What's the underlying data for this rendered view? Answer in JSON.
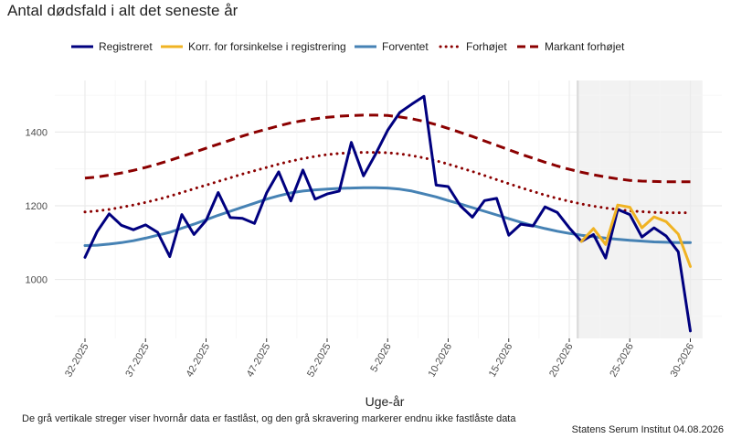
{
  "page": {
    "caption": "De grå vertikale streger viser hvornår data er fastlåst, og den grå skravering markerer endnu ikke fastlåste data",
    "source": "Statens Serum Institut  04.08.2026"
  },
  "chart_data": {
    "type": "line",
    "title": "Antal dødsfald i alt det seneste år",
    "xlabel": "Uge-år",
    "ylabel": "",
    "ylim": [
      840,
      1540
    ],
    "yticks": [
      1000,
      1200,
      1400
    ],
    "x_ticks": [
      {
        "index": 0,
        "label": "32-2025"
      },
      {
        "index": 5,
        "label": "37-2025"
      },
      {
        "index": 10,
        "label": "42-2025"
      },
      {
        "index": 15,
        "label": "47-2025"
      },
      {
        "index": 20,
        "label": "52-2025"
      },
      {
        "index": 25,
        "label": "5-2026"
      },
      {
        "index": 30,
        "label": "10-2026"
      },
      {
        "index": 35,
        "label": "15-2026"
      },
      {
        "index": 40,
        "label": "20-2026"
      },
      {
        "index": 45,
        "label": "25-2026"
      },
      {
        "index": 50,
        "label": "30-2026"
      }
    ],
    "grid": true,
    "legend_position": "top",
    "shaded_region": {
      "from_index": 40.7,
      "to_index": 51,
      "color": "#f2f2f2"
    },
    "vertical_line": {
      "index": 40.7,
      "color": "#dddddd"
    },
    "series": [
      {
        "name": "Registreret",
        "color": "#00007f",
        "style": "solid",
        "values": [
          1060,
          1130,
          1178,
          1147,
          1135,
          1148,
          1128,
          1062,
          1176,
          1122,
          1160,
          1236,
          1168,
          1166,
          1152,
          1235,
          1292,
          1213,
          1297,
          1218,
          1232,
          1240,
          1372,
          1281,
          1340,
          1405,
          1453,
          1476,
          1497,
          1256,
          1252,
          1200,
          1169,
          1214,
          1220,
          1120,
          1150,
          1145,
          1197,
          1182,
          1140,
          1103,
          1122,
          1058,
          1190,
          1176,
          1115,
          1140,
          1118,
          1075,
          860
        ]
      },
      {
        "name": "Korr. for forsinkelse i registrering",
        "color": "#f0b323",
        "style": "solid",
        "start_index": 41,
        "values": [
          1103,
          1138,
          1095,
          1202,
          1196,
          1140,
          1170,
          1157,
          1123,
          1035
        ]
      },
      {
        "name": "Forventet",
        "color": "#4682b4",
        "style": "solid",
        "values": [
          1092,
          1093,
          1096,
          1100,
          1105,
          1112,
          1120,
          1128,
          1139,
          1150,
          1162,
          1174,
          1185,
          1196,
          1207,
          1218,
          1227,
          1235,
          1240,
          1243,
          1245,
          1247,
          1248,
          1249,
          1249,
          1248,
          1245,
          1240,
          1232,
          1224,
          1214,
          1205,
          1195,
          1185,
          1175,
          1165,
          1155,
          1146,
          1138,
          1131,
          1125,
          1120,
          1116,
          1112,
          1109,
          1106,
          1104,
          1102,
          1101,
          1100,
          1100
        ]
      },
      {
        "name": "Forhøjet",
        "color": "#8b0000",
        "style": "dotted",
        "values": [
          1183,
          1186,
          1190,
          1196,
          1202,
          1209,
          1217,
          1226,
          1236,
          1246,
          1256,
          1266,
          1276,
          1286,
          1295,
          1304,
          1313,
          1321,
          1328,
          1334,
          1339,
          1342,
          1344,
          1345,
          1345,
          1344,
          1341,
          1336,
          1330,
          1322,
          1313,
          1303,
          1293,
          1282,
          1271,
          1260,
          1249,
          1239,
          1229,
          1220,
          1212,
          1205,
          1199,
          1194,
          1190,
          1186,
          1184,
          1182,
          1181,
          1181,
          1181
        ]
      },
      {
        "name": "Markant forhøjet",
        "color": "#8b0000",
        "style": "dashed",
        "values": [
          1275,
          1278,
          1283,
          1289,
          1296,
          1304,
          1313,
          1323,
          1334,
          1345,
          1356,
          1367,
          1378,
          1389,
          1399,
          1408,
          1417,
          1425,
          1431,
          1436,
          1440,
          1443,
          1445,
          1446,
          1446,
          1445,
          1441,
          1436,
          1429,
          1420,
          1410,
          1399,
          1388,
          1376,
          1364,
          1352,
          1340,
          1329,
          1318,
          1308,
          1299,
          1291,
          1284,
          1278,
          1273,
          1269,
          1267,
          1266,
          1265,
          1265,
          1265
        ]
      }
    ]
  }
}
